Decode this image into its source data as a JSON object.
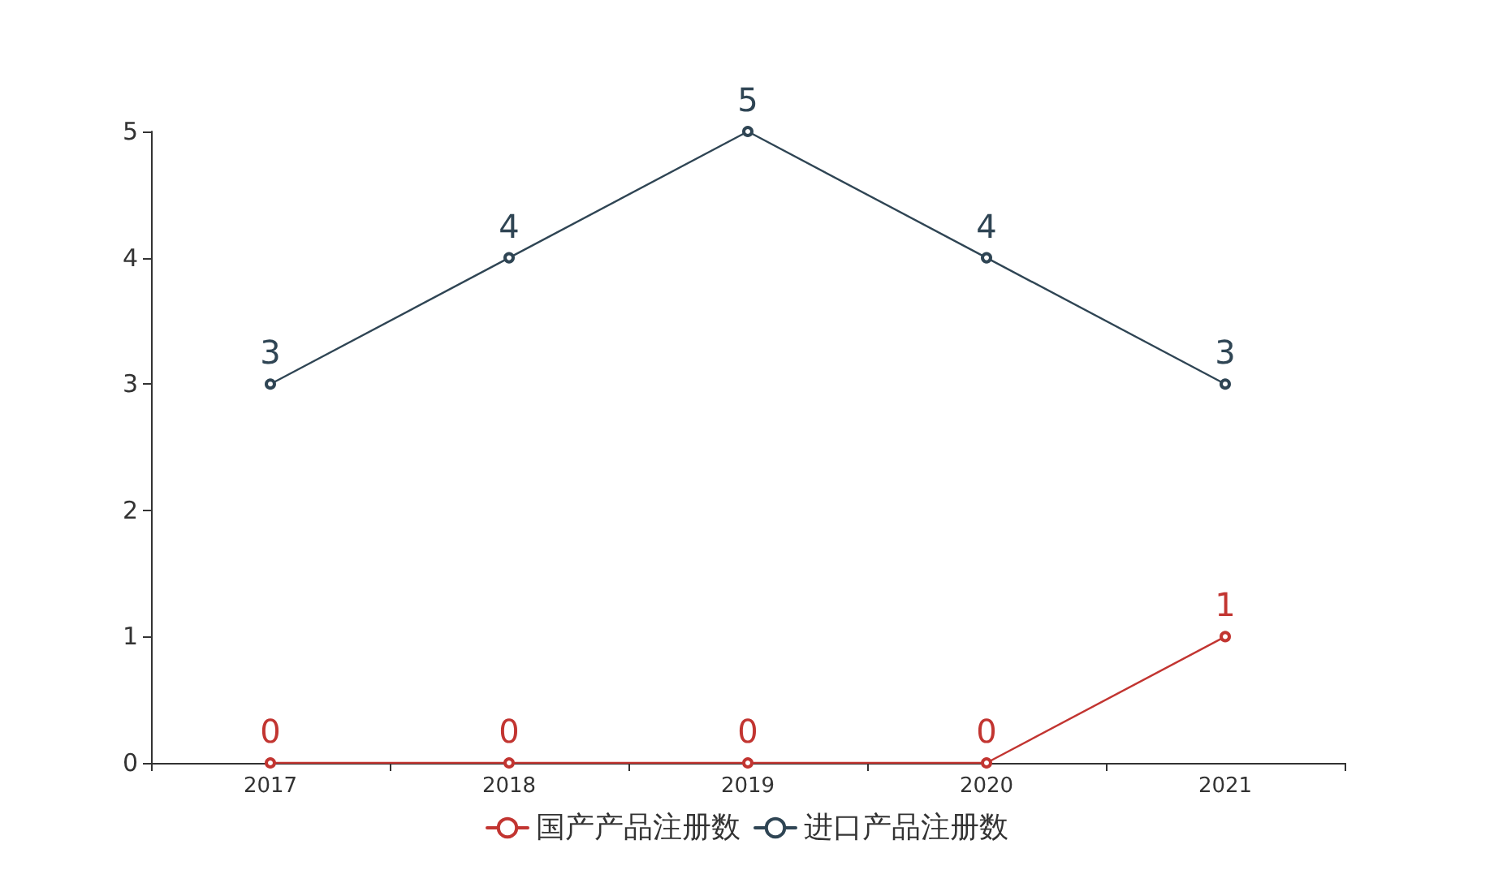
{
  "chart_data": {
    "type": "line",
    "categories": [
      "2017",
      "2018",
      "2019",
      "2020",
      "2021"
    ],
    "series": [
      {
        "name": "国产产品注册数",
        "color": "#c23531",
        "values": [
          0,
          0,
          0,
          0,
          1
        ]
      },
      {
        "name": "进口产品注册数",
        "color": "#2f4554",
        "values": [
          3,
          4,
          5,
          4,
          3
        ]
      }
    ],
    "ylim": [
      0,
      5
    ],
    "yticks": [
      0,
      1,
      2,
      3,
      4,
      5
    ],
    "grid": false,
    "legend": "bottom",
    "marker": "circle",
    "line_style": "solid",
    "data_labels": true
  }
}
